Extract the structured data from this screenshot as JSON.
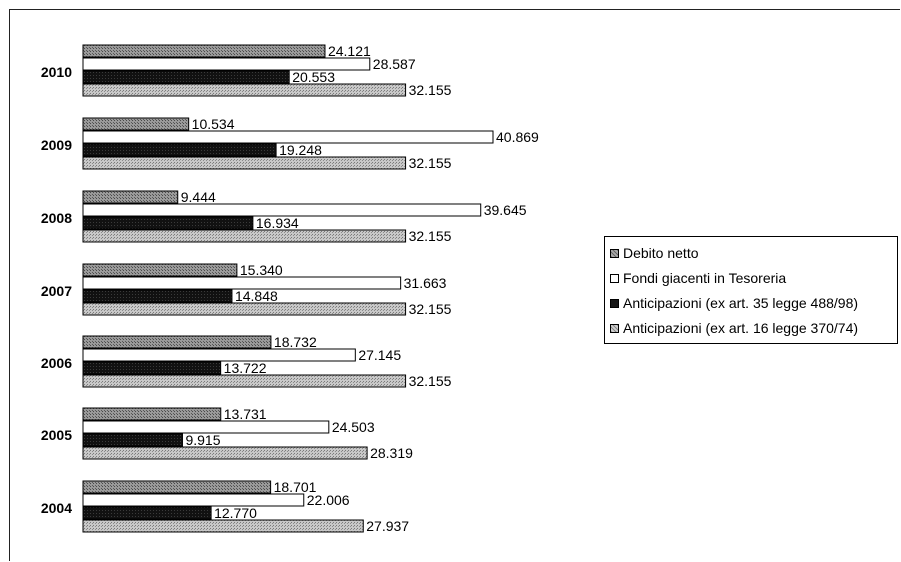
{
  "chart_data": {
    "type": "bar",
    "orientation": "horizontal",
    "categories": [
      "2010",
      "2009",
      "2008",
      "2007",
      "2006",
      "2005",
      "2004"
    ],
    "series": [
      {
        "name": "Debito netto",
        "color": "#8a8a8a",
        "values": [
          24.121,
          10.534,
          9.444,
          15.34,
          18.732,
          13.731,
          18.701
        ],
        "labels": [
          "24.121",
          "10.534",
          "9.444",
          "15.340",
          "18.732",
          "13.731",
          "18.701"
        ]
      },
      {
        "name": "Fondi giacenti in Tesoreria",
        "color": "#ffffff",
        "values": [
          28.587,
          40.869,
          39.645,
          31.663,
          27.145,
          24.503,
          22.006
        ],
        "labels": [
          "28.587",
          "40.869",
          "39.645",
          "31.663",
          "27.145",
          "24.503",
          "22.006"
        ]
      },
      {
        "name": "Anticipazioni (ex art. 35 legge 488/98)",
        "color": "#151515",
        "values": [
          20.553,
          19.248,
          16.934,
          14.848,
          13.722,
          9.915,
          12.77
        ],
        "labels": [
          "20.553",
          "19.248",
          "16.934",
          "14.848",
          "13.722",
          "9.915",
          "12.770"
        ]
      },
      {
        "name": "Anticipazioni (ex art. 16 legge 370/74)",
        "color": "#bdbdbd",
        "values": [
          32.155,
          32.155,
          32.155,
          32.155,
          32.155,
          28.319,
          27.937
        ],
        "labels": [
          "32.155",
          "32.155",
          "32.155",
          "32.155",
          "32.155",
          "28.319",
          "27.937"
        ]
      }
    ],
    "xlim": [
      0,
      40.869
    ],
    "grid": false,
    "legend_position": "right"
  }
}
